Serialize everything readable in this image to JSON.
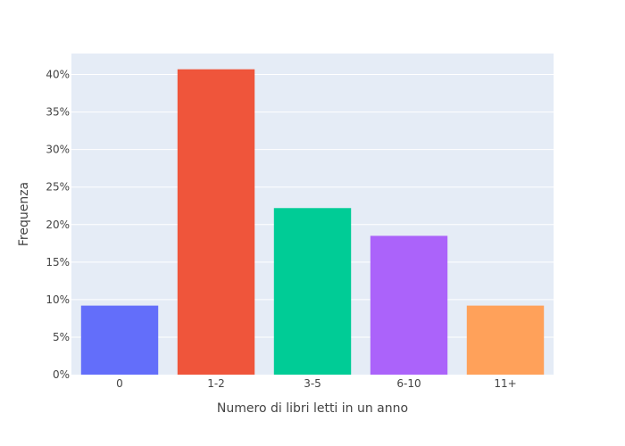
{
  "chart_data": {
    "type": "bar",
    "title": "",
    "xlabel": "Numero di libri letti in un anno",
    "ylabel": "Frequenza",
    "categories": [
      "0",
      "1-2",
      "3-5",
      "6-10",
      "11+"
    ],
    "values": [
      9.2,
      40.7,
      22.2,
      18.5,
      9.2
    ],
    "value_unit": "%",
    "ylim": [
      0,
      42.8
    ],
    "yticks": [
      0,
      5,
      10,
      15,
      20,
      25,
      30,
      35,
      40
    ],
    "ytick_labels": [
      "0%",
      "5%",
      "10%",
      "15%",
      "20%",
      "25%",
      "30%",
      "35%",
      "40%"
    ],
    "colors": [
      "#636efa",
      "#ef553b",
      "#00cc96",
      "#ab63fa",
      "#ffa15a"
    ],
    "grid": true,
    "legend": "none",
    "plot_background": "#e5ecf6"
  }
}
